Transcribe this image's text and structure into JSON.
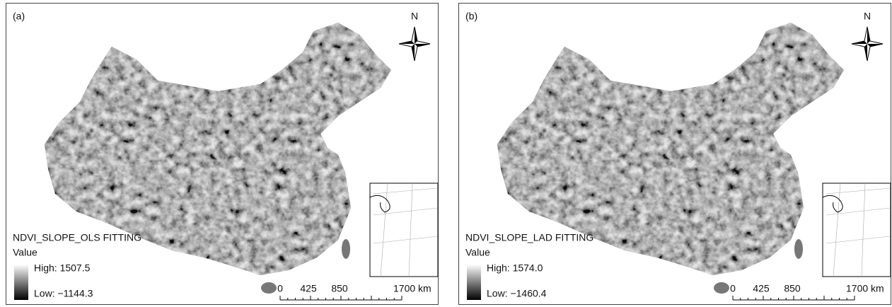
{
  "panels": [
    {
      "label": "(a)",
      "north": "N",
      "legend_title": "NDVI_SLOPE_OLS FITTING",
      "legend_subtitle": "Value",
      "high": "High: 1507.5",
      "low": "Low: −1144.3",
      "scale_labels": [
        "0",
        "425",
        "850",
        "1700 km"
      ]
    },
    {
      "label": "(b)",
      "north": "N",
      "legend_title": "NDVI_SLOPE_LAD FITTING",
      "legend_subtitle": "Value",
      "high": "High: 1574.0",
      "low": "Low: −1460.4",
      "scale_labels": [
        "0",
        "425",
        "850",
        "1700 km"
      ]
    }
  ]
}
